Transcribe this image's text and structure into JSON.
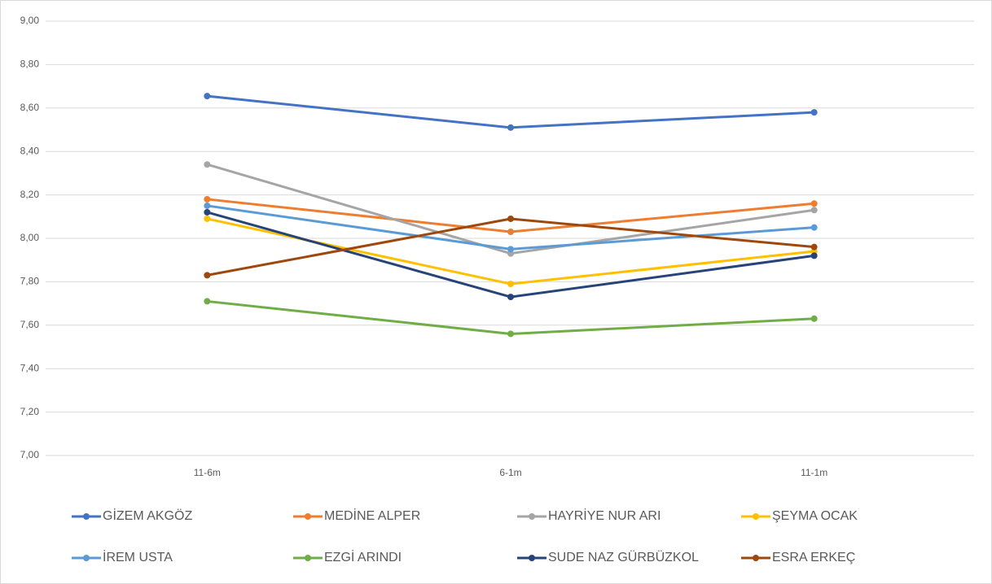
{
  "chart_data": {
    "type": "line",
    "categories": [
      "11-6m",
      "6-1m",
      "11-1m"
    ],
    "series": [
      {
        "name": "GİZEM AKGÖZ",
        "color": "#4472c4",
        "values": [
          8.655,
          8.51,
          8.58
        ]
      },
      {
        "name": "MEDİNE ALPER",
        "color": "#ed7d31",
        "values": [
          8.18,
          8.03,
          8.16
        ]
      },
      {
        "name": "HAYRİYE NUR ARI",
        "color": "#a5a5a5",
        "values": [
          8.34,
          7.93,
          8.13
        ]
      },
      {
        "name": "ŞEYMA OCAK",
        "color": "#ffc000",
        "values": [
          8.09,
          7.79,
          7.94
        ]
      },
      {
        "name": "İREM USTA",
        "color": "#5b9bd5",
        "values": [
          8.15,
          7.95,
          8.05
        ]
      },
      {
        "name": "EZGİ ARINDI",
        "color": "#70ad47",
        "values": [
          7.71,
          7.56,
          7.63
        ]
      },
      {
        "name": "SUDE NAZ GÜRBÜZKOL",
        "color": "#264478",
        "values": [
          8.12,
          7.73,
          7.92
        ]
      },
      {
        "name": "ESRA ERKEÇ",
        "color": "#9e480e",
        "values": [
          7.83,
          8.09,
          7.96
        ]
      }
    ],
    "ylim": [
      7,
      9
    ],
    "yticks": [
      {
        "value": 7,
        "label": "7,00"
      },
      {
        "value": 7.2,
        "label": "7,20"
      },
      {
        "value": 7.4,
        "label": "7,40"
      },
      {
        "value": 7.6,
        "label": "7,60"
      },
      {
        "value": 7.8,
        "label": "7,80"
      },
      {
        "value": 8,
        "label": "8,00"
      },
      {
        "value": 8.2,
        "label": "8,20"
      },
      {
        "value": 8.4,
        "label": "8,40"
      },
      {
        "value": 8.6,
        "label": "8,60"
      },
      {
        "value": 8.8,
        "label": "8,80"
      },
      {
        "value": 9,
        "label": "9,00"
      }
    ],
    "grid": true,
    "legend": "bottom"
  }
}
